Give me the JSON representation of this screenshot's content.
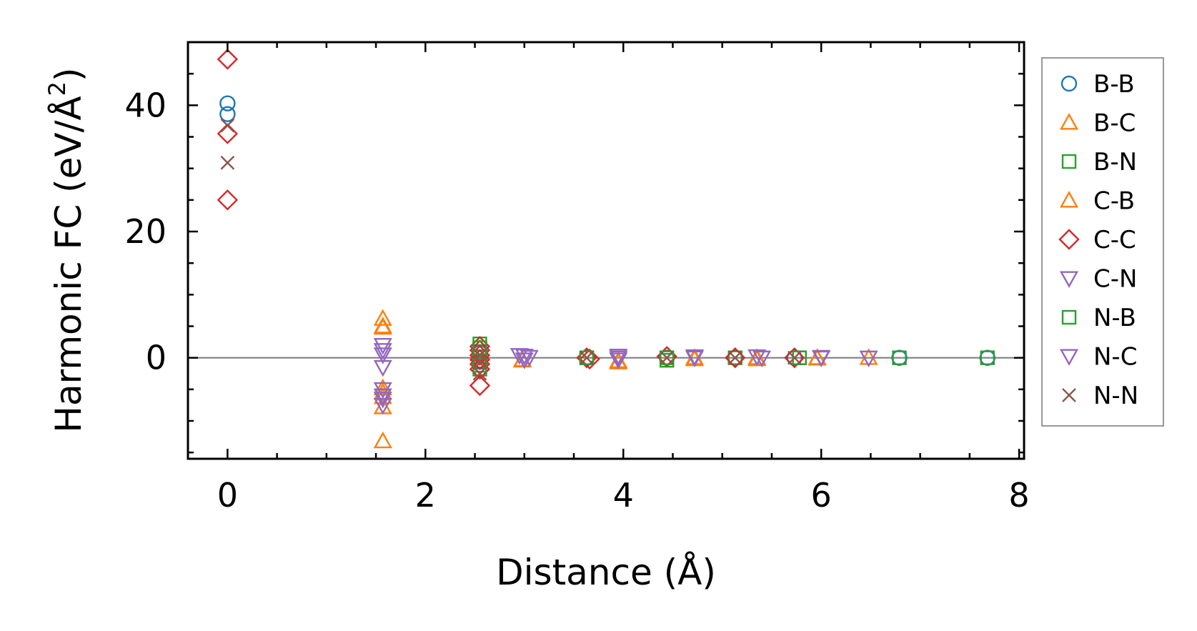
{
  "chart_data": {
    "type": "scatter",
    "xlabel": "Distance (Å)",
    "ylabel_main": "Harmonic FC (eV/Å",
    "ylabel_sup": "2",
    "ylabel_close": ")",
    "xlim": [
      -0.4,
      8.05
    ],
    "ylim": [
      -16,
      50
    ],
    "xticks": [
      0,
      2,
      4,
      6,
      8
    ],
    "yticks": [
      0,
      20,
      40
    ],
    "xtick_labels": [
      "0",
      "2",
      "4",
      "6",
      "8"
    ],
    "ytick_labels": [
      "0",
      "20",
      "40"
    ],
    "zero_line": true,
    "grid": false,
    "legend_placement": "outside-right",
    "series": [
      {
        "name": "B-B",
        "marker": "circle",
        "color": "#1f77b4",
        "points": [
          [
            0,
            40.3
          ],
          [
            0,
            38.6
          ],
          [
            2.55,
            0.8
          ],
          [
            2.55,
            -0.6
          ],
          [
            3.63,
            0.0
          ],
          [
            4.44,
            0.0
          ],
          [
            5.13,
            0.0
          ],
          [
            5.73,
            0.0
          ],
          [
            6.79,
            0.0
          ],
          [
            7.68,
            0.0
          ]
        ]
      },
      {
        "name": "B-C",
        "marker": "triangle-up",
        "color": "#ff7f0e",
        "points": [
          [
            1.57,
            6.2
          ],
          [
            1.57,
            4.8
          ],
          [
            1.57,
            -4.8
          ],
          [
            1.57,
            -6.2
          ],
          [
            1.57,
            -7.8
          ],
          [
            1.57,
            -13.2
          ],
          [
            2.98,
            -0.4
          ],
          [
            3.95,
            -0.7
          ],
          [
            4.72,
            -0.2
          ],
          [
            5.35,
            -0.2
          ],
          [
            5.96,
            -0.1
          ],
          [
            6.48,
            0.0
          ]
        ]
      },
      {
        "name": "B-N",
        "marker": "square",
        "color": "#2ca02c",
        "points": [
          [
            2.55,
            2.2
          ],
          [
            2.55,
            1.0
          ],
          [
            2.55,
            -0.5
          ],
          [
            2.55,
            -1.8
          ],
          [
            3.63,
            0.0
          ],
          [
            4.44,
            -0.4
          ],
          [
            5.13,
            0.0
          ],
          [
            5.78,
            0.0
          ],
          [
            6.79,
            0.0
          ],
          [
            7.68,
            0.0
          ]
        ]
      },
      {
        "name": "C-B",
        "marker": "triangle-up",
        "color": "#ff7f0e",
        "points": [
          [
            1.57,
            5.0
          ],
          [
            1.57,
            -5.5
          ],
          [
            2.98,
            -0.3
          ],
          [
            3.95,
            -0.5
          ],
          [
            4.72,
            0.0
          ],
          [
            5.35,
            0.0
          ],
          [
            5.96,
            0.0
          ]
        ]
      },
      {
        "name": "C-C",
        "marker": "diamond",
        "color": "#d62728",
        "points": [
          [
            0,
            47.3
          ],
          [
            0,
            35.5
          ],
          [
            0,
            25.0
          ],
          [
            2.55,
            1.8
          ],
          [
            2.55,
            1.2
          ],
          [
            2.55,
            0.4
          ],
          [
            2.55,
            -0.3
          ],
          [
            2.55,
            -1.0
          ],
          [
            2.55,
            -1.8
          ],
          [
            2.55,
            -4.4
          ],
          [
            3.63,
            0.0
          ],
          [
            3.66,
            -0.2
          ],
          [
            4.44,
            0.2
          ],
          [
            5.13,
            0.0
          ],
          [
            5.73,
            0.0
          ]
        ]
      },
      {
        "name": "C-N",
        "marker": "triangle-down",
        "color": "#9467bd",
        "points": [
          [
            1.57,
            2.0
          ],
          [
            1.57,
            0.5
          ],
          [
            1.57,
            -1.5
          ],
          [
            1.57,
            -5.0
          ],
          [
            1.57,
            -6.5
          ],
          [
            1.57,
            -7.5
          ],
          [
            3.0,
            0.3
          ],
          [
            3.0,
            -0.3
          ],
          [
            3.95,
            0.3
          ],
          [
            3.95,
            -0.3
          ],
          [
            4.72,
            0.0
          ],
          [
            5.4,
            0.0
          ],
          [
            6.0,
            0.0
          ],
          [
            6.48,
            0.0
          ]
        ]
      },
      {
        "name": "N-B",
        "marker": "square",
        "color": "#2ca02c",
        "points": [
          [
            2.55,
            1.6
          ],
          [
            2.55,
            -1.2
          ],
          [
            3.63,
            0.0
          ],
          [
            4.44,
            0.0
          ],
          [
            5.78,
            0.0
          ]
        ]
      },
      {
        "name": "N-C",
        "marker": "triangle-down",
        "color": "#9467bd",
        "points": [
          [
            1.57,
            1.2
          ],
          [
            1.57,
            -6.0
          ],
          [
            2.95,
            0.4
          ],
          [
            3.05,
            0.1
          ],
          [
            3.95,
            0.0
          ],
          [
            4.72,
            0.2
          ],
          [
            5.35,
            0.2
          ],
          [
            6.0,
            0.1
          ]
        ]
      },
      {
        "name": "N-N",
        "marker": "x",
        "color": "#8c564b",
        "points": [
          [
            0,
            36.8
          ],
          [
            0,
            30.9
          ],
          [
            2.55,
            0.4
          ],
          [
            2.55,
            -0.8
          ],
          [
            2.55,
            -2.5
          ],
          [
            3.63,
            0.0
          ],
          [
            4.44,
            0.0
          ],
          [
            5.13,
            0.0
          ],
          [
            5.73,
            0.0
          ]
        ]
      }
    ]
  }
}
